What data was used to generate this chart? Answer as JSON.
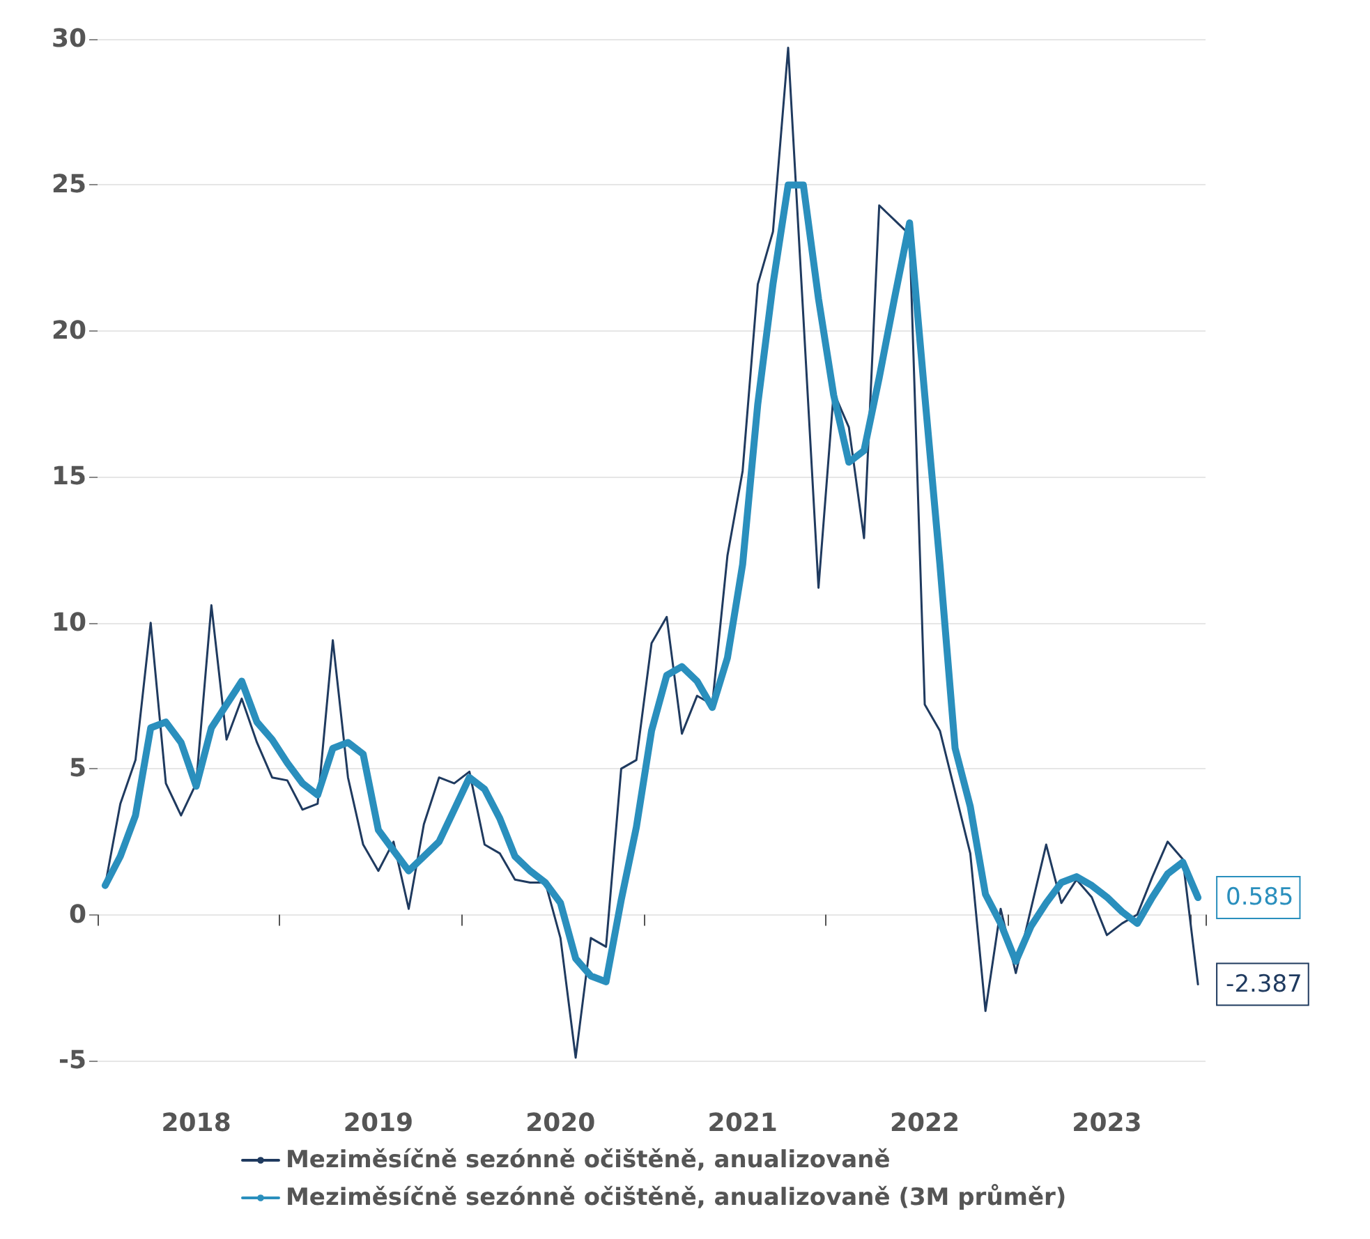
{
  "chart_data": {
    "type": "line",
    "categories": [
      null,
      null,
      null,
      null,
      null,
      null,
      "2018",
      null,
      null,
      null,
      null,
      null,
      null,
      null,
      null,
      null,
      null,
      null,
      "2019",
      null,
      null,
      null,
      null,
      null,
      null,
      null,
      null,
      null,
      null,
      null,
      "2020",
      null,
      null,
      null,
      null,
      null,
      null,
      null,
      null,
      null,
      null,
      null,
      "2021",
      null,
      null,
      null,
      null,
      null,
      null,
      null,
      null,
      null,
      null,
      null,
      "2022",
      null,
      null,
      null,
      null,
      null,
      null,
      null,
      null,
      null,
      null,
      null,
      "2023",
      null,
      null,
      null,
      null,
      null,
      null
    ],
    "series": [
      {
        "name": "Meziměsíčně sezónně očištěně, anualizovaně",
        "color": "#1f3a5f",
        "values": [
          1.0,
          3.8,
          5.3,
          10.0,
          4.5,
          3.4,
          4.5,
          10.6,
          6.0,
          7.4,
          5.9,
          4.7,
          4.6,
          3.6,
          3.8,
          9.4,
          4.7,
          2.4,
          1.5,
          2.5,
          0.2,
          3.1,
          4.7,
          4.5,
          4.9,
          2.4,
          2.1,
          1.2,
          1.1,
          1.1,
          -0.8,
          -4.9,
          -0.8,
          -1.1,
          5.0,
          5.3,
          9.3,
          10.2,
          6.2,
          7.5,
          7.2,
          12.3,
          15.2,
          21.6,
          23.4,
          29.7,
          20.5,
          11.2,
          17.9,
          16.7,
          12.9,
          24.3,
          23.8,
          23.3,
          7.2,
          6.3,
          4.2,
          2.1,
          -3.3,
          0.2,
          -2.0,
          0.2,
          2.4,
          0.4,
          1.2,
          0.6,
          -0.7,
          -0.3,
          0.0,
          1.3,
          2.5,
          1.9,
          -2.387
        ],
        "value_labels": [
          null,
          null,
          null,
          null,
          null,
          null,
          null,
          null,
          null,
          null,
          null,
          null,
          null,
          null,
          null,
          null,
          null,
          null,
          null,
          null,
          null,
          null,
          null,
          null,
          null,
          null,
          null,
          null,
          null,
          null,
          null,
          null,
          null,
          null,
          null,
          null,
          null,
          null,
          null,
          null,
          null,
          null,
          null,
          null,
          null,
          null,
          null,
          null,
          null,
          null,
          null,
          null,
          null,
          null,
          null,
          null,
          null,
          null,
          null,
          null,
          null,
          null,
          null,
          null,
          null,
          null,
          null,
          null,
          null,
          null,
          null,
          null,
          "-2.387"
        ]
      },
      {
        "name": "Meziměsíčně sezónně očištěně, anualizovaně (3M průměr)",
        "color": "#2a8fbd",
        "values": [
          1.0,
          2.0,
          3.4,
          6.4,
          6.6,
          5.9,
          4.4,
          6.4,
          7.2,
          8.0,
          6.6,
          6.0,
          5.2,
          4.5,
          4.1,
          5.7,
          5.9,
          5.5,
          2.9,
          2.2,
          1.5,
          2.0,
          2.5,
          3.6,
          4.7,
          4.3,
          3.3,
          2.0,
          1.5,
          1.1,
          0.4,
          -1.5,
          -2.1,
          -2.3,
          0.5,
          3.0,
          6.3,
          8.2,
          8.5,
          8.0,
          7.1,
          8.8,
          12.0,
          17.5,
          21.6,
          25.0,
          25.0,
          21.1,
          17.8,
          15.5,
          15.9,
          18.4,
          21.1,
          23.7,
          17.8,
          12.0,
          5.7,
          3.7,
          0.7,
          -0.3,
          -1.6,
          -0.4,
          0.4,
          1.1,
          1.3,
          1.0,
          0.6,
          0.1,
          -0.3,
          0.6,
          1.4,
          1.8,
          0.585
        ],
        "value_labels": [
          null,
          null,
          null,
          null,
          null,
          null,
          null,
          null,
          null,
          null,
          null,
          null,
          null,
          null,
          null,
          null,
          null,
          null,
          null,
          null,
          null,
          null,
          null,
          null,
          null,
          null,
          null,
          null,
          null,
          null,
          null,
          null,
          null,
          null,
          null,
          null,
          null,
          null,
          null,
          null,
          null,
          null,
          null,
          null,
          null,
          null,
          null,
          null,
          null,
          null,
          null,
          null,
          null,
          null,
          null,
          null,
          null,
          null,
          null,
          null,
          null,
          null,
          null,
          null,
          null,
          null,
          null,
          null,
          null,
          null,
          null,
          null,
          "0.585"
        ]
      }
    ],
    "ylim": [
      -5,
      30
    ],
    "yticks": [
      -5,
      0,
      5,
      10,
      15,
      20,
      25,
      30
    ],
    "grid": "y",
    "legend": "bottom",
    "marker": "none",
    "line_style": "solid"
  }
}
